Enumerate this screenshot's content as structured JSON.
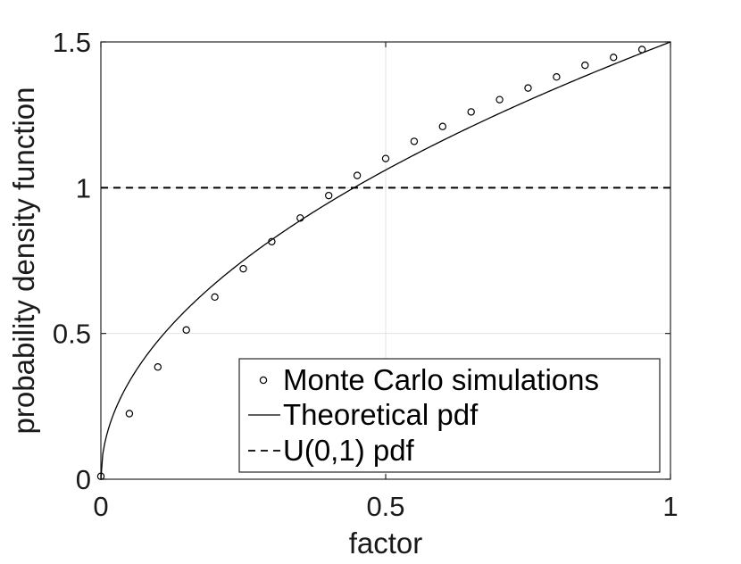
{
  "chart_data": {
    "type": "line",
    "title": "",
    "xlabel": "factor",
    "ylabel": "probability density function",
    "xlim": [
      0,
      1
    ],
    "ylim": [
      0,
      1.5
    ],
    "xticks": [
      "0",
      "0.5",
      "1"
    ],
    "yticks": [
      "0",
      "0.5",
      "1",
      "1.5"
    ],
    "grid": true,
    "legend_position": "bottom-right",
    "series": [
      {
        "name": "Monte Carlo simulations",
        "style": "markers-circle",
        "x": [
          0,
          0.05,
          0.1,
          0.15,
          0.2,
          0.25,
          0.3,
          0.35,
          0.4,
          0.45,
          0.5,
          0.55,
          0.6,
          0.65,
          0.7,
          0.75,
          0.8,
          0.85,
          0.9,
          0.95
        ],
        "y": [
          0.01,
          0.225,
          0.385,
          0.512,
          0.625,
          0.722,
          0.815,
          0.896,
          0.973,
          1.042,
          1.1,
          1.159,
          1.21,
          1.26,
          1.302,
          1.342,
          1.38,
          1.42,
          1.447,
          1.474
        ]
      },
      {
        "name": "Theoretical pdf",
        "style": "solid",
        "formula": "y = 1.5 * sqrt(x)"
      },
      {
        "name": "U(0,1) pdf",
        "style": "dashed",
        "x": [
          0,
          1
        ],
        "y": [
          1,
          1
        ]
      }
    ]
  }
}
